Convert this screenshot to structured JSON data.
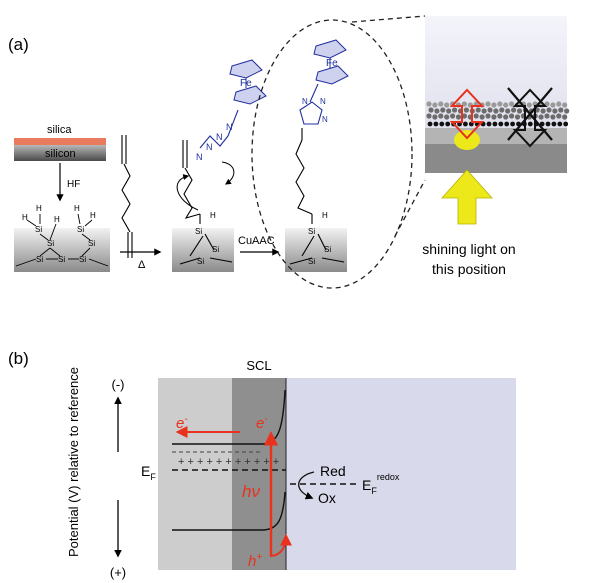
{
  "panel_a": {
    "label": "(a)",
    "silica": "silica",
    "silicon": "silicon",
    "hf": "HF",
    "heat": "Δ",
    "cuaac": "CuAAC",
    "fe": "Fe",
    "h": "H",
    "si": "Si",
    "caption_line1": "shining light on",
    "caption_line2": "this position"
  },
  "panel_b": {
    "label": "(b)",
    "axis_title": "Potential (V) relative to reference",
    "minus": "(-)",
    "plus": "(+)",
    "scl": "SCL",
    "e_left": "e",
    "e_mid": "e",
    "e_sup": "-",
    "ef": "E",
    "ef_sub": "F",
    "hv": "hν",
    "hplus": "h",
    "hplus_sup": "+",
    "red": "Red",
    "ox": "Ox",
    "eredox": "E",
    "eredox_sub": "F",
    "eredox_sup": "redox",
    "holes": "+ + + + + + + + + + +"
  },
  "colors": {
    "silica_layer": "#e87a5d",
    "blue_molecule": "#1f2f9e",
    "arrow_red": "#e8321e",
    "yellow": "#ece81a",
    "electrolyte": "#d8d9ea",
    "semi_light": "#cdcdcd",
    "semi_dark": "#8f8f8f"
  }
}
